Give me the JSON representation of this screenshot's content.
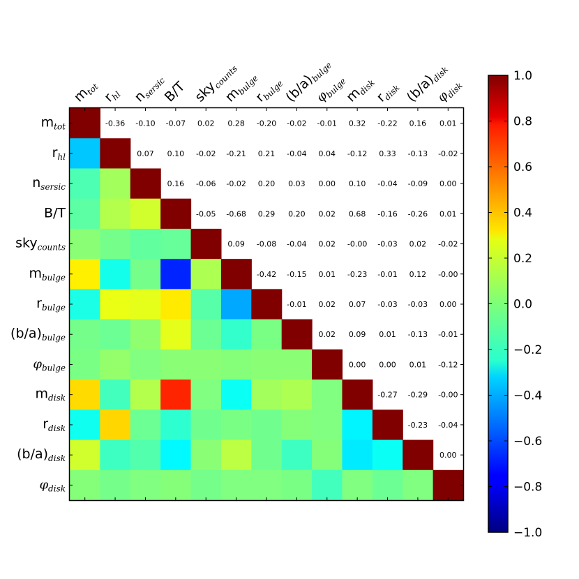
{
  "chart_data": {
    "type": "heatmap",
    "title": "",
    "xlabel": "",
    "ylabel": "",
    "labels": [
      {
        "base": "m",
        "sub": "tot"
      },
      {
        "base": "r",
        "sub": "hl"
      },
      {
        "base": "n",
        "sub": "sersic"
      },
      {
        "base": "B/T",
        "sub": ""
      },
      {
        "base": "sky",
        "sub": "counts"
      },
      {
        "base": "m",
        "sub": "bulge"
      },
      {
        "base": "r",
        "sub": "bulge"
      },
      {
        "base": "(b/a)",
        "sub": "bulge"
      },
      {
        "base": "φ",
        "sub": "bulge"
      },
      {
        "base": "m",
        "sub": "disk"
      },
      {
        "base": "r",
        "sub": "disk"
      },
      {
        "base": "(b/a)",
        "sub": "disk"
      },
      {
        "base": "φ",
        "sub": "disk"
      }
    ],
    "upper_triangle_text": [
      [
        "",
        "-0.36",
        "-0.10",
        "-0.07",
        "0.02",
        "0.28",
        "-0.20",
        "-0.02",
        "-0.01",
        "0.32",
        "-0.22",
        "0.16",
        "0.01"
      ],
      [
        "",
        "",
        "0.07",
        "0.10",
        "-0.02",
        "-0.21",
        "0.21",
        "-0.04",
        "0.04",
        "-0.12",
        "0.33",
        "-0.13",
        "-0.02"
      ],
      [
        "",
        "",
        "",
        "0.16",
        "-0.06",
        "-0.02",
        "0.20",
        "0.03",
        "0.00",
        "0.10",
        "-0.04",
        "-0.09",
        "0.00"
      ],
      [
        "",
        "",
        "",
        "",
        "-0.05",
        "-0.68",
        "0.29",
        "0.20",
        "0.02",
        "0.68",
        "-0.16",
        "-0.26",
        "0.01"
      ],
      [
        "",
        "",
        "",
        "",
        "",
        "0.09",
        "-0.08",
        "-0.04",
        "0.02",
        "-0.00",
        "-0.03",
        "0.02",
        "-0.02"
      ],
      [
        "",
        "",
        "",
        "",
        "",
        "",
        "-0.42",
        "-0.15",
        "0.01",
        "-0.23",
        "-0.01",
        "0.12",
        "-0.00"
      ],
      [
        "",
        "",
        "",
        "",
        "",
        "",
        "",
        "-0.01",
        "0.02",
        "0.07",
        "-0.03",
        "-0.03",
        "0.00"
      ],
      [
        "",
        "",
        "",
        "",
        "",
        "",
        "",
        "",
        "0.02",
        "0.09",
        "0.01",
        "-0.13",
        "-0.01"
      ],
      [
        "",
        "",
        "",
        "",
        "",
        "",
        "",
        "",
        "",
        "0.00",
        "0.00",
        "0.01",
        "-0.12"
      ],
      [
        "",
        "",
        "",
        "",
        "",
        "",
        "",
        "",
        "",
        "",
        "-0.27",
        "-0.29",
        "-0.00"
      ],
      [
        "",
        "",
        "",
        "",
        "",
        "",
        "",
        "",
        "",
        "",
        "",
        "-0.23",
        "-0.04"
      ],
      [
        "",
        "",
        "",
        "",
        "",
        "",
        "",
        "",
        "",
        "",
        "",
        "",
        "0.00"
      ],
      [
        "",
        "",
        "",
        "",
        "",
        "",
        "",
        "",
        "",
        "",
        "",
        "",
        ""
      ]
    ],
    "colorbar": {
      "colormap": "jet",
      "range": [
        -1.0,
        1.0
      ],
      "ticks": [
        "1.0",
        "0.8",
        "0.6",
        "0.4",
        "0.2",
        "0.0",
        "−0.2",
        "−0.4",
        "−0.6",
        "−0.8",
        "−1.0"
      ]
    },
    "diagonal_value": 1.0,
    "grid": false
  }
}
